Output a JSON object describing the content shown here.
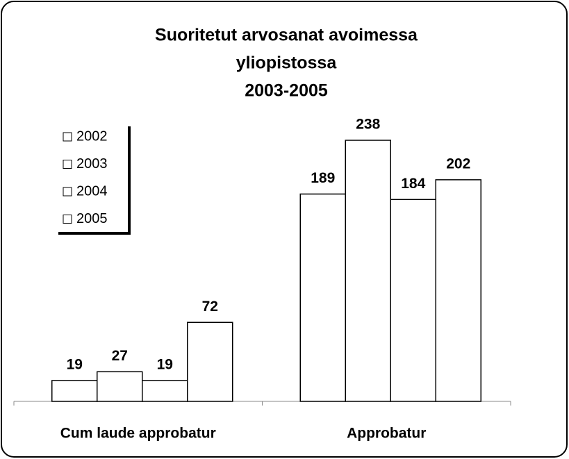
{
  "chart_data": {
    "type": "bar",
    "title": [
      "Suoritetut arvosanat avoimessa",
      "yliopistossa",
      "2003-2005"
    ],
    "categories": [
      "Cum laude approbatur",
      "Approbatur"
    ],
    "series": [
      {
        "name": "2002",
        "color": "#ffffff",
        "values": [
          19,
          189
        ]
      },
      {
        "name": "2003",
        "color": "#ffffff",
        "values": [
          27,
          238
        ]
      },
      {
        "name": "2004",
        "color": "#ffffff",
        "values": [
          19,
          184
        ]
      },
      {
        "name": "2005",
        "color": "#ffffff",
        "values": [
          72,
          202
        ]
      }
    ],
    "legend": "upper left"
  }
}
